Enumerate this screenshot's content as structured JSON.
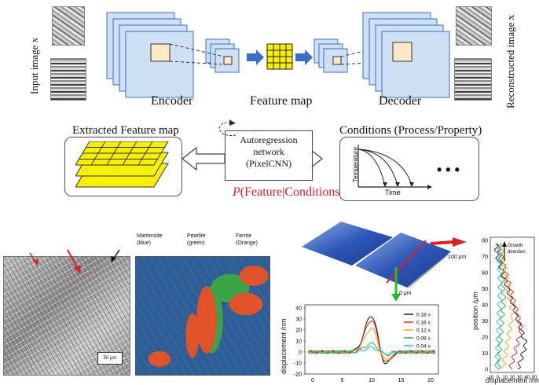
{
  "top": {
    "input_label": "Input image x",
    "reconstructed_label": "Reconstructed image x",
    "encoder_label": "Encoder",
    "feature_map_label": "Feature map",
    "decoder_label": "Decoder"
  },
  "middle": {
    "extracted_label": "Extracted Feature map",
    "autoreg_line1": "Autoregression",
    "autoreg_line2": "network",
    "autoreg_line3": "(PixelCNN)",
    "conditions_label": "Conditions (Process/Property)",
    "prob_p": "P",
    "prob_rest": "(Feature|Conditions)",
    "temperature_axis": "Temperature",
    "time_axis": "Time",
    "ellipsis": "• • •"
  },
  "micro": {
    "scale_bar": "50 μm",
    "martensite": "Martensite\n(blue)",
    "pearlite": "Pearlite\n(green)",
    "ferrite": "Ferrite\n(Orange)"
  },
  "surface": {
    "label_100": "100 μm",
    "label_0": "0 μm"
  },
  "disp_chart": {
    "ylabel": "displacement /nm",
    "yticks": [
      "40",
      "30",
      "20",
      "10",
      "0",
      "-10",
      "-20"
    ],
    "xticks": [
      "0",
      "5",
      "10",
      "15",
      "20"
    ],
    "legend": [
      "0.18 s",
      "0.16 s",
      "0.12 s",
      "0.08 s",
      "0.04 s"
    ]
  },
  "pos_chart": {
    "ylabel": "position /μm",
    "xlabel": "displacement /nm",
    "yticks": [
      "80",
      "70",
      "60",
      "50",
      "40",
      "30",
      "20",
      "10",
      "0"
    ],
    "xticks": [
      "-10",
      "0",
      "10",
      "20",
      "30",
      "40",
      "50"
    ],
    "growth_label": "Growth\ndirection"
  },
  "colors": {
    "series": [
      "#111111",
      "#e02020",
      "#f0a000",
      "#2aa84a",
      "#20b8c8"
    ],
    "accent_red": "#e02020",
    "arrow_blue": "#3b6fc4",
    "grid_yellow": "#f6f000",
    "layer_blue": "#cfe0f5"
  }
}
